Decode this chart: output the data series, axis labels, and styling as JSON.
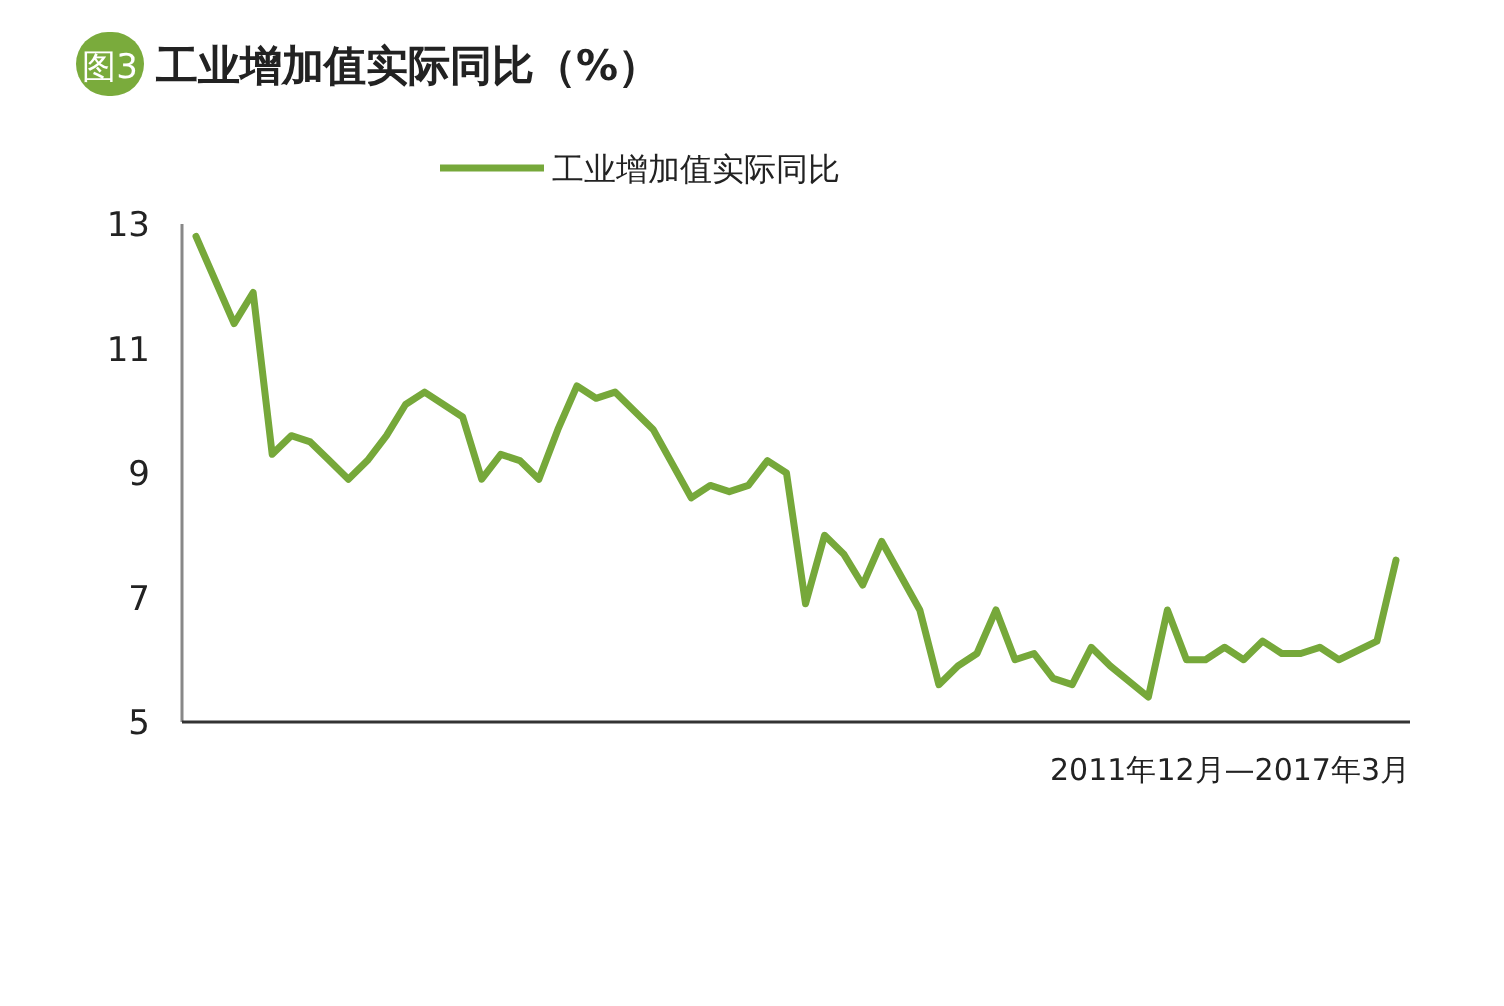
{
  "chart_data": {
    "type": "line",
    "title": "工业增加值实际同比（%）",
    "annotations": [
      "图3"
    ],
    "xlabel": "2011年12月—2017年3月",
    "categories": [
      null,
      null,
      null,
      null,
      null,
      null,
      null,
      null,
      null,
      null,
      null,
      null,
      null,
      null,
      null,
      null,
      null,
      null,
      null,
      null,
      null,
      null,
      null,
      null,
      null,
      null,
      null,
      null,
      null,
      null,
      null,
      null,
      null,
      null,
      null,
      null,
      null,
      null,
      null,
      null,
      null,
      null,
      null,
      null,
      null,
      null,
      null,
      null,
      null,
      null,
      null,
      null,
      null,
      null,
      null,
      null,
      null,
      null,
      null,
      null,
      null,
      null,
      null,
      null
    ],
    "series": [
      {
        "name": "工业增加值实际同比",
        "color": "#76a83a",
        "values": [
          12.8,
          null,
          11.4,
          11.9,
          9.3,
          9.6,
          9.5,
          9.2,
          8.9,
          9.2,
          9.6,
          10.1,
          10.3,
          null,
          9.9,
          8.9,
          9.3,
          9.2,
          8.9,
          9.7,
          10.4,
          10.2,
          10.3,
          10.0,
          9.7,
          null,
          8.6,
          8.8,
          8.7,
          8.8,
          9.2,
          9.0,
          6.9,
          8.0,
          7.7,
          7.2,
          7.9,
          null,
          6.8,
          5.6,
          5.9,
          6.1,
          6.8,
          6.0,
          6.1,
          5.7,
          5.6,
          6.2,
          5.9,
          null,
          5.4,
          6.8,
          6.0,
          6.0,
          6.2,
          6.0,
          6.3,
          6.1,
          6.1,
          6.2,
          6.0,
          null,
          6.3,
          7.6
        ]
      }
    ],
    "ylim": [
      5,
      13
    ],
    "yticks": [
      5,
      7,
      9,
      11,
      13
    ],
    "legend": "top"
  }
}
